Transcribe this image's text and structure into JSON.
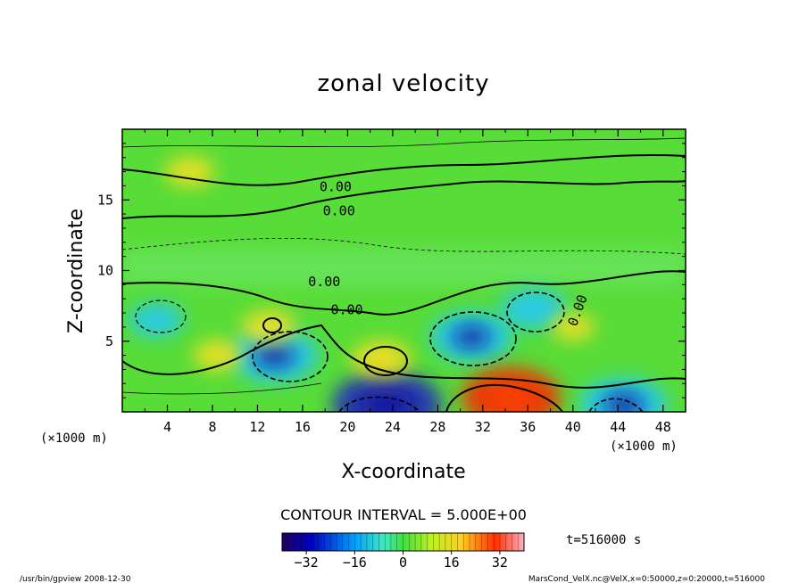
{
  "chart_data": {
    "type": "heatmap",
    "title": "zonal velocity",
    "xlabel": "X-coordinate",
    "ylabel": "Z-coordinate",
    "xunit": "(×1000 m)",
    "yunit": "(×1000 m)",
    "xlim": [
      0,
      50
    ],
    "ylim": [
      0,
      20
    ],
    "xticks": [
      4,
      8,
      12,
      16,
      20,
      24,
      28,
      32,
      36,
      40,
      44,
      48
    ],
    "yticks": [
      5,
      10,
      15
    ],
    "contour_interval_label": "CONTOUR INTERVAL = 5.000E+00",
    "contour_labels": [
      "0.00",
      "0.00",
      "0.00",
      "0.00",
      "0.00"
    ],
    "colorbar": {
      "range": [
        -40,
        40
      ],
      "ticks": [
        -32,
        -16,
        0,
        16,
        32
      ]
    },
    "time_label": "t=516000 s",
    "colors": {
      "negative_strong": "#2020c0",
      "negative": "#20c8ff",
      "zero": "#40e040",
      "positive": "#ffe020",
      "positive_strong": "#ff2000"
    },
    "features": [
      {
        "kind": "min",
        "x": 13.5,
        "z": 4.0,
        "value": -20
      },
      {
        "kind": "min",
        "x": 3.0,
        "z": 6.5,
        "value": -8
      },
      {
        "kind": "min",
        "x": 31.0,
        "z": 5.3,
        "value": -18
      },
      {
        "kind": "min",
        "x": 36.5,
        "z": 7.3,
        "value": -12
      },
      {
        "kind": "min",
        "x": 23.5,
        "z": 0.5,
        "value": -28
      },
      {
        "kind": "min",
        "x": 44.5,
        "z": 0.5,
        "value": -20
      },
      {
        "kind": "max",
        "x": 34.5,
        "z": 1.0,
        "value": 24
      },
      {
        "kind": "max",
        "x": 23.0,
        "z": 3.7,
        "value": 10
      },
      {
        "kind": "max",
        "x": 13.0,
        "z": 6.0,
        "value": 8
      },
      {
        "kind": "max",
        "x": 8.5,
        "z": 4.0,
        "value": 6
      },
      {
        "kind": "max",
        "x": 6.0,
        "z": 17.0,
        "value": 6
      },
      {
        "kind": "max",
        "x": 40.0,
        "z": 6.0,
        "value": 4
      }
    ]
  },
  "footer": {
    "left": "/usr/bin/gpview   2008-12-30",
    "right": "MarsCond_VelX.nc@VelX,x=0:50000,z=0:20000,t=516000"
  }
}
